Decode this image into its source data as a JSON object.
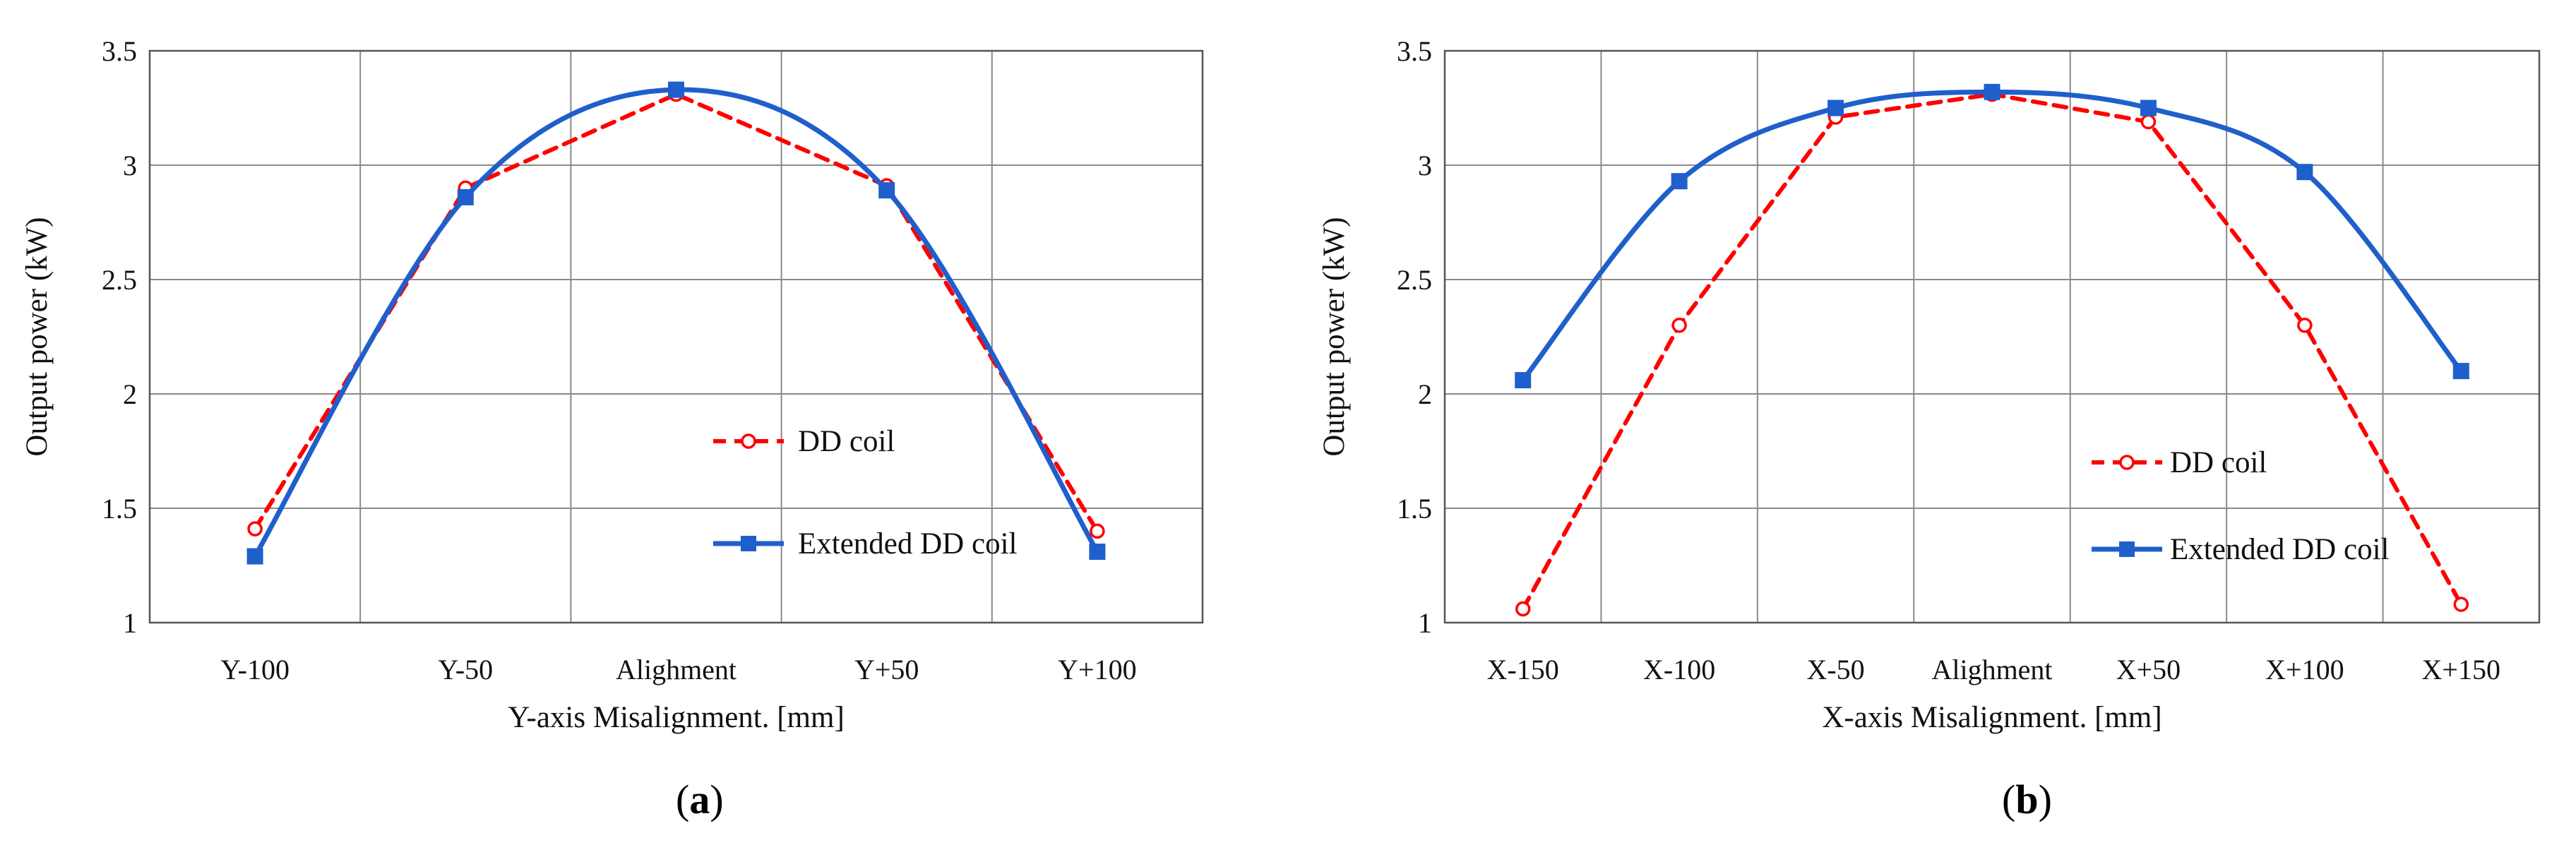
{
  "chart_data": [
    {
      "type": "line",
      "panel_label": {
        "open": "(",
        "letter": "a",
        "close": ")"
      },
      "categories": [
        "Y-100",
        "Y-50",
        "Alighment",
        "Y+50",
        "Y+100"
      ],
      "xlabel": "Y-axis Misalignment. [mm]",
      "ylabel": "Output power (kW)",
      "ylim": [
        1,
        3.5
      ],
      "yticks": [
        "1",
        "1.5",
        "2",
        "2.5",
        "3",
        "3.5"
      ],
      "ytick_values": [
        1,
        1.5,
        2,
        2.5,
        3,
        3.5
      ],
      "grid": true,
      "legend_position": "center-right",
      "series": [
        {
          "name": "DD coil",
          "color": "#ff0000",
          "line_style": "dashed",
          "marker": "open-circle",
          "smooth": false,
          "values": [
            1.41,
            2.9,
            3.31,
            2.91,
            1.4
          ]
        },
        {
          "name": "Extended DD coil",
          "color": "#1f5fcc",
          "line_style": "solid",
          "marker": "filled-square",
          "smooth": true,
          "values": [
            1.29,
            2.86,
            3.33,
            2.89,
            1.31
          ]
        }
      ]
    },
    {
      "type": "line",
      "panel_label": {
        "open": "(",
        "letter": "b",
        "close": ")"
      },
      "categories": [
        "X-150",
        "X-100",
        "X-50",
        "Alighment",
        "X+50",
        "X+100",
        "X+150"
      ],
      "xlabel": "X-axis Misalignment. [mm]",
      "ylabel": "Output power (kW)",
      "ylim": [
        1,
        3.5
      ],
      "yticks": [
        "1",
        "1.5",
        "2",
        "2.5",
        "3",
        "3.5"
      ],
      "ytick_values": [
        1,
        1.5,
        2,
        2.5,
        3,
        3.5
      ],
      "grid": true,
      "legend_position": "center-right",
      "series": [
        {
          "name": "DD coil",
          "color": "#ff0000",
          "line_style": "dashed",
          "marker": "open-circle",
          "smooth": false,
          "values": [
            1.06,
            2.3,
            3.21,
            3.31,
            3.19,
            2.3,
            1.08
          ]
        },
        {
          "name": "Extended DD coil",
          "color": "#1f5fcc",
          "line_style": "solid",
          "marker": "filled-square",
          "smooth": true,
          "values": [
            2.06,
            2.93,
            3.25,
            3.32,
            3.25,
            2.97,
            2.1
          ]
        }
      ]
    }
  ]
}
